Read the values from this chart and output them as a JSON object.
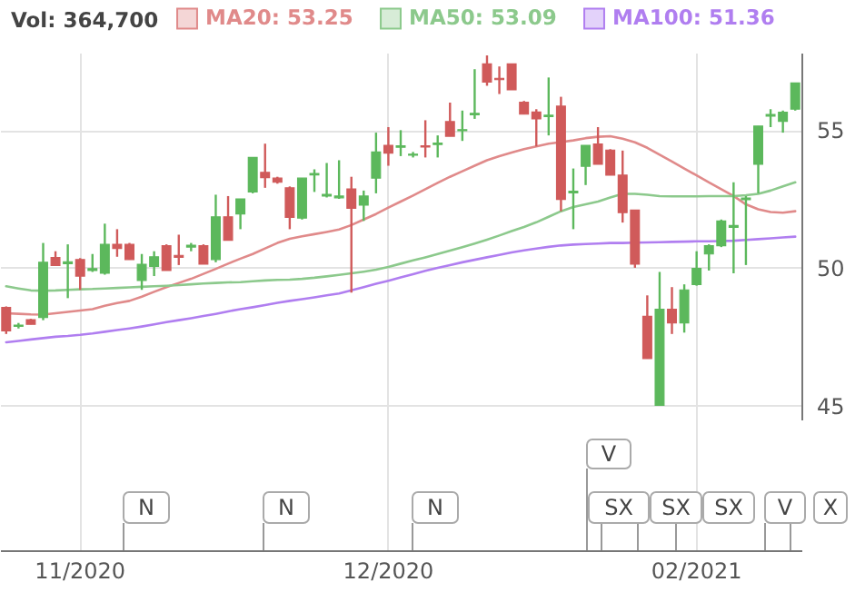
{
  "chart_data": {
    "type": "candlestick",
    "categories": [
      null,
      null,
      null,
      null,
      null,
      null,
      "11/2020",
      null,
      null,
      null,
      null,
      null,
      null,
      null,
      null,
      null,
      null,
      null,
      null,
      null,
      null,
      null,
      null,
      null,
      null,
      null,
      null,
      null,
      null,
      null,
      null,
      "12/2020",
      null,
      null,
      null,
      null,
      null,
      null,
      null,
      null,
      null,
      null,
      null,
      null,
      null,
      null,
      null,
      null,
      null,
      null,
      null,
      null,
      null,
      null,
      null,
      null,
      "02/2021",
      null,
      null,
      null,
      null,
      null,
      null,
      null,
      null
    ],
    "ohlc": [
      [
        48.56,
        48.6,
        47.6,
        47.71
      ],
      [
        47.88,
        48.0,
        47.8,
        47.92
      ],
      [
        48.12,
        48.15,
        47.95,
        47.95
      ],
      [
        48.2,
        50.9,
        48.1,
        50.2
      ],
      [
        50.37,
        50.6,
        50.08,
        50.08
      ],
      [
        50.15,
        50.85,
        48.9,
        50.22
      ],
      [
        50.3,
        50.35,
        49.2,
        49.7
      ],
      [
        49.9,
        50.5,
        49.85,
        49.97
      ],
      [
        49.8,
        51.6,
        49.75,
        50.85
      ],
      [
        50.85,
        51.4,
        50.4,
        50.7
      ],
      [
        50.85,
        50.9,
        50.3,
        50.3
      ],
      [
        49.54,
        50.5,
        49.2,
        50.13
      ],
      [
        50.05,
        50.6,
        49.7,
        50.4
      ],
      [
        50.8,
        50.85,
        49.9,
        49.9
      ],
      [
        50.45,
        51.2,
        50.1,
        50.38
      ],
      [
        50.75,
        50.9,
        50.6,
        50.82
      ],
      [
        50.8,
        50.85,
        50.13,
        50.13
      ],
      [
        50.3,
        52.65,
        50.2,
        51.85
      ],
      [
        51.85,
        52.6,
        51.0,
        51.0
      ],
      [
        51.95,
        52.5,
        51.4,
        52.5
      ],
      [
        52.75,
        54.0,
        52.7,
        54.0
      ],
      [
        53.46,
        54.5,
        52.9,
        53.27
      ],
      [
        53.25,
        53.3,
        53.05,
        53.1
      ],
      [
        52.9,
        52.95,
        51.4,
        51.83
      ],
      [
        51.8,
        53.25,
        51.75,
        53.25
      ],
      [
        53.37,
        53.57,
        52.75,
        53.42
      ],
      [
        52.6,
        53.8,
        52.55,
        52.66
      ],
      [
        52.54,
        53.9,
        52.5,
        52.6
      ],
      [
        52.86,
        53.3,
        49.1,
        52.16
      ],
      [
        52.27,
        52.8,
        51.7,
        52.6
      ],
      [
        53.25,
        54.9,
        52.7,
        54.2
      ],
      [
        54.44,
        55.1,
        53.7,
        54.16
      ],
      [
        54.37,
        54.99,
        54.05,
        54.42
      ],
      [
        54.08,
        54.2,
        54.0,
        54.12
      ],
      [
        54.42,
        55.35,
        54.0,
        54.38
      ],
      [
        54.47,
        54.8,
        54.0,
        54.52
      ],
      [
        55.3,
        55.99,
        54.77,
        54.77
      ],
      [
        54.97,
        55.7,
        54.6,
        55.01
      ],
      [
        55.55,
        57.2,
        55.4,
        55.6
      ],
      [
        57.39,
        57.7,
        56.6,
        56.73
      ],
      [
        56.87,
        57.3,
        56.3,
        56.82
      ],
      [
        57.39,
        57.4,
        56.45,
        56.45
      ],
      [
        56.0,
        56.05,
        55.57,
        55.57
      ],
      [
        55.65,
        55.75,
        54.4,
        55.4
      ],
      [
        55.48,
        56.9,
        54.8,
        55.53
      ],
      [
        55.86,
        56.2,
        52.05,
        52.48
      ],
      [
        52.72,
        53.6,
        51.4,
        52.78
      ],
      [
        53.68,
        54.44,
        53.0,
        54.44
      ],
      [
        54.49,
        55.1,
        53.75,
        53.75
      ],
      [
        54.27,
        54.3,
        53.36,
        53.36
      ],
      [
        53.36,
        54.25,
        51.64,
        52.0
      ],
      [
        52.09,
        52.1,
        50.0,
        50.13
      ],
      [
        48.24,
        49.0,
        46.71,
        46.71
      ],
      [
        45.01,
        49.85,
        45.0,
        48.5
      ],
      [
        48.5,
        49.3,
        47.6,
        48.0
      ],
      [
        48.0,
        49.4,
        47.65,
        49.2
      ],
      [
        49.39,
        50.6,
        49.35,
        49.98
      ],
      [
        50.5,
        50.85,
        49.9,
        50.8
      ],
      [
        50.8,
        51.75,
        50.75,
        51.7
      ],
      [
        51.47,
        53.1,
        49.8,
        51.53
      ],
      [
        52.47,
        52.6,
        50.1,
        52.53
      ],
      [
        53.75,
        55.14,
        52.7,
        55.14
      ],
      [
        55.5,
        55.75,
        55.1,
        55.56
      ],
      [
        55.31,
        55.7,
        54.9,
        55.64
      ],
      [
        55.75,
        56.7,
        55.7,
        56.7
      ]
    ],
    "colors": [
      "#d05a5a",
      "#5cb85c",
      "#d05a5a",
      "#5cb85c",
      "#d05a5a",
      "#5cb85c",
      "#d05a5a",
      "#5cb85c",
      "#5cb85c",
      "#d05a5a",
      "#d05a5a",
      "#5cb85c",
      "#5cb85c",
      "#d05a5a",
      "#d05a5a",
      "#5cb85c",
      "#d05a5a",
      "#5cb85c",
      "#d05a5a",
      "#5cb85c",
      "#5cb85c",
      "#d05a5a",
      "#d05a5a",
      "#d05a5a",
      "#5cb85c",
      "#5cb85c",
      "#5cb85c",
      "#5cb85c",
      "#d05a5a",
      "#5cb85c",
      "#5cb85c",
      "#d05a5a",
      "#5cb85c",
      "#5cb85c",
      "#d05a5a",
      "#5cb85c",
      "#d05a5a",
      "#5cb85c",
      "#5cb85c",
      "#d05a5a",
      "#d05a5a",
      "#d05a5a",
      "#d05a5a",
      "#d05a5a",
      "#5cb85c",
      "#d05a5a",
      "#5cb85c",
      "#5cb85c",
      "#d05a5a",
      "#d05a5a",
      "#d05a5a",
      "#d05a5a",
      "#d05a5a",
      "#5cb85c",
      "#d05a5a",
      "#5cb85c",
      "#5cb85c",
      "#5cb85c",
      "#5cb85c",
      "#5cb85c",
      "#5cb85c",
      "#5cb85c",
      "#5cb85c",
      "#5cb85c",
      "#5cb85c"
    ],
    "series": [
      {
        "name": "MA20: 53.25",
        "type": "line",
        "color": "#e08a8a",
        "values": [
          48.35,
          48.33,
          48.31,
          48.3,
          48.35,
          48.4,
          48.45,
          48.5,
          48.62,
          48.72,
          48.8,
          48.95,
          49.13,
          49.3,
          49.45,
          49.6,
          49.78,
          49.96,
          50.15,
          50.33,
          50.5,
          50.7,
          50.9,
          51.05,
          51.14,
          51.22,
          51.3,
          51.39,
          51.55,
          51.75,
          51.95,
          52.18,
          52.4,
          52.62,
          52.85,
          53.08,
          53.3,
          53.5,
          53.7,
          53.9,
          54.05,
          54.18,
          54.3,
          54.4,
          54.5,
          54.56,
          54.62,
          54.7,
          54.75,
          54.77,
          54.68,
          54.55,
          54.35,
          54.1,
          53.85,
          53.6,
          53.35,
          53.1,
          52.85,
          52.6,
          52.3,
          52.12,
          52.02,
          52.0,
          52.05
        ]
      },
      {
        "name": "MA50: 53.09",
        "type": "line",
        "color": "#8cc98c",
        "values": [
          49.33,
          49.25,
          49.18,
          49.17,
          49.18,
          49.2,
          49.22,
          49.23,
          49.25,
          49.27,
          49.29,
          49.31,
          49.33,
          49.35,
          49.37,
          49.4,
          49.43,
          49.45,
          49.47,
          49.48,
          49.51,
          49.54,
          49.56,
          49.57,
          49.6,
          49.64,
          49.69,
          49.74,
          49.8,
          49.86,
          49.93,
          50.03,
          50.15,
          50.27,
          50.38,
          50.5,
          50.62,
          50.75,
          50.88,
          51.02,
          51.17,
          51.33,
          51.48,
          51.65,
          51.85,
          52.05,
          52.2,
          52.3,
          52.4,
          52.55,
          52.68,
          52.68,
          52.65,
          52.6,
          52.59,
          52.59,
          52.59,
          52.6,
          52.6,
          52.6,
          52.63,
          52.68,
          52.8,
          52.95,
          53.1
        ]
      },
      {
        "name": "MA100: 51.36",
        "type": "line",
        "color": "#b07ef0",
        "values": [
          47.3,
          47.35,
          47.4,
          47.45,
          47.5,
          47.53,
          47.57,
          47.62,
          47.68,
          47.74,
          47.8,
          47.87,
          47.95,
          48.03,
          48.1,
          48.17,
          48.25,
          48.33,
          48.42,
          48.5,
          48.57,
          48.65,
          48.73,
          48.8,
          48.86,
          48.93,
          49.0,
          49.07,
          49.18,
          49.3,
          49.42,
          49.53,
          49.65,
          49.77,
          49.89,
          50.0,
          50.1,
          50.2,
          50.29,
          50.38,
          50.47,
          50.56,
          50.63,
          50.7,
          50.76,
          50.81,
          50.84,
          50.86,
          50.88,
          50.9,
          50.9,
          50.91,
          50.92,
          50.93,
          50.94,
          50.95,
          50.96,
          50.96,
          50.97,
          50.98,
          51.01,
          51.04,
          51.07,
          51.1,
          51.13
        ]
      }
    ],
    "ylim": [
      44.5,
      57.8
    ],
    "yticks": [
      45,
      50,
      55
    ],
    "grid": true,
    "legend": "top",
    "annotations": [
      "Vol: 364,700",
      "N",
      "N",
      "N",
      "V",
      "SX",
      "SX",
      "SX",
      "V",
      "X"
    ]
  }
}
